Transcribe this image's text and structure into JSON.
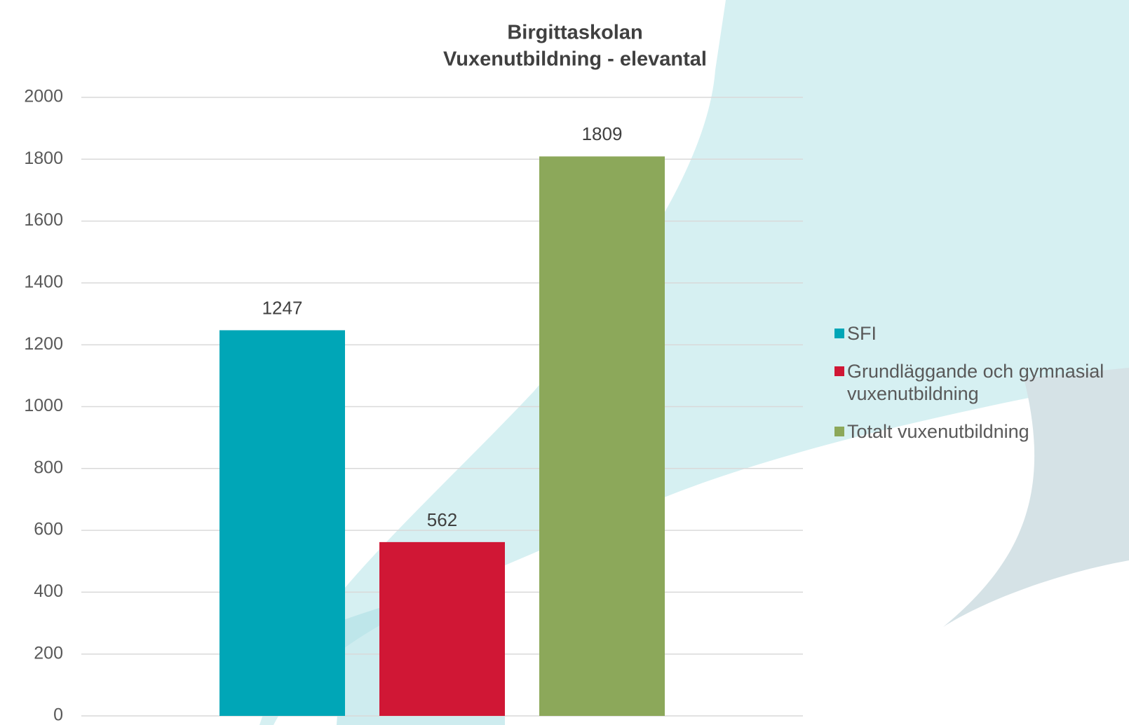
{
  "chart_data": {
    "type": "bar",
    "title": "Birgittaskolan",
    "subtitle": "Vuxenutbildning - elevantal",
    "categories": [
      null
    ],
    "series": [
      {
        "name": "SFI",
        "color": "#00a6b7",
        "values": [
          1247
        ]
      },
      {
        "name": "Grundläggande och gymnasial vuxenutbildning",
        "color": "#d01735",
        "values": [
          562
        ]
      },
      {
        "name": "Totalt vuxenutbildning",
        "color": "#8ca85a",
        "values": [
          1809
        ]
      }
    ],
    "ylim": [
      0,
      2000
    ],
    "yticks": [
      0,
      200,
      400,
      600,
      800,
      1000,
      1200,
      1400,
      1600,
      1800,
      2000
    ],
    "grid": true,
    "legend": "right"
  }
}
